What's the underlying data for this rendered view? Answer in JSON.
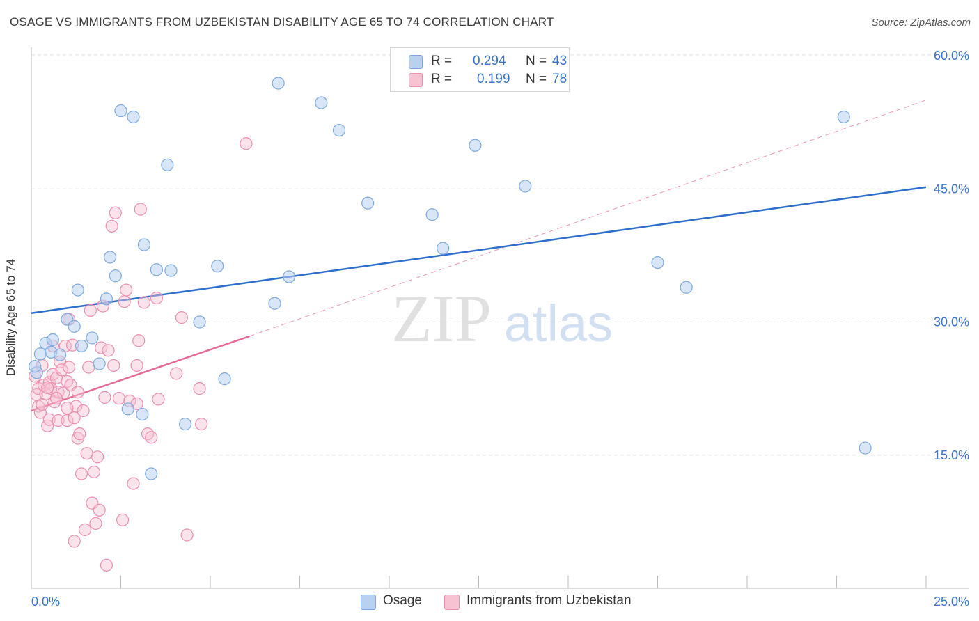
{
  "title": "OSAGE VS IMMIGRANTS FROM UZBEKISTAN DISABILITY AGE 65 TO 74 CORRELATION CHART",
  "source": "Source: ZipAtlas.com",
  "watermark": {
    "zip": "ZIP",
    "atlas": "atlas"
  },
  "legend_top": {
    "rows": [
      {
        "r_label": "R =",
        "r_value": "0.294",
        "n_label": "N =",
        "n_value": "43"
      },
      {
        "r_label": "R =",
        "r_value": "0.199",
        "n_label": "N =",
        "n_value": "78"
      }
    ]
  },
  "colors": {
    "osage_fill": "#b8d1f1",
    "osage_stroke": "#7ea8dc",
    "osage_line": "#2f6fcc",
    "uzb_fill": "#f7c2d2",
    "uzb_stroke": "#ea8fae",
    "uzb_line": "#e56b97",
    "tick_text": "#3a74c8",
    "grid": "#e3e3e3",
    "axis": "#bbbbbb"
  },
  "chart_data": {
    "type": "scatter",
    "title": "OSAGE VS IMMIGRANTS FROM UZBEKISTAN DISABILITY AGE 65 TO 74 CORRELATION CHART",
    "xlabel": "",
    "ylabel": "Disability Age 65 to 74",
    "xlim": [
      0,
      25
    ],
    "ylim": [
      0,
      62
    ],
    "x_tick_labels": [
      "0.0%",
      "25.0%"
    ],
    "y_ticks": [
      15,
      30,
      45,
      60
    ],
    "y_tick_labels": [
      "15.0%",
      "30.0%",
      "45.0%",
      "60.0%"
    ],
    "grid": true,
    "legend_position": "top-center",
    "series": [
      {
        "name": "Osage",
        "r": 0.294,
        "n": 43,
        "trend": {
          "x": [
            0,
            25
          ],
          "y": [
            31.0,
            45.2
          ]
        },
        "points": [
          [
            0.15,
            24.3
          ],
          [
            0.25,
            26.4
          ],
          [
            0.4,
            27.6
          ],
          [
            0.55,
            26.6
          ],
          [
            0.6,
            28.0
          ],
          [
            0.8,
            26.3
          ],
          [
            1.0,
            30.3
          ],
          [
            1.2,
            29.5
          ],
          [
            1.3,
            33.6
          ],
          [
            1.4,
            27.3
          ],
          [
            1.7,
            28.2
          ],
          [
            1.9,
            25.3
          ],
          [
            2.1,
            32.6
          ],
          [
            2.2,
            37.3
          ],
          [
            2.35,
            35.2
          ],
          [
            2.5,
            53.8
          ],
          [
            2.7,
            20.2
          ],
          [
            2.85,
            53.1
          ],
          [
            3.1,
            19.6
          ],
          [
            3.15,
            38.7
          ],
          [
            3.35,
            12.9
          ],
          [
            3.5,
            35.9
          ],
          [
            3.8,
            47.7
          ],
          [
            3.9,
            35.8
          ],
          [
            4.3,
            18.5
          ],
          [
            4.7,
            30.0
          ],
          [
            5.2,
            36.3
          ],
          [
            5.4,
            23.6
          ],
          [
            6.8,
            32.1
          ],
          [
            6.9,
            56.9
          ],
          [
            7.2,
            35.1
          ],
          [
            8.1,
            54.7
          ],
          [
            8.6,
            51.6
          ],
          [
            9.4,
            43.4
          ],
          [
            11.2,
            42.1
          ],
          [
            11.5,
            38.3
          ],
          [
            12.4,
            49.9
          ],
          [
            13.8,
            45.3
          ],
          [
            17.5,
            36.7
          ],
          [
            18.3,
            33.9
          ],
          [
            22.7,
            53.1
          ],
          [
            23.3,
            15.8
          ],
          [
            0.1,
            25.0
          ]
        ]
      },
      {
        "name": "Immigrants from Uzbekistan",
        "r": 0.199,
        "n": 78,
        "trend": {
          "x": [
            0,
            6.1
          ],
          "y": [
            20.0,
            28.4
          ]
        },
        "trend_extension": {
          "x": [
            6.1,
            25
          ],
          "y": [
            28.4,
            55.0
          ]
        },
        "points": [
          [
            0.1,
            23.9
          ],
          [
            0.15,
            21.8
          ],
          [
            0.2,
            20.5
          ],
          [
            0.2,
            22.5
          ],
          [
            0.25,
            19.8
          ],
          [
            0.3,
            25.1
          ],
          [
            0.35,
            22.9
          ],
          [
            0.4,
            21.9
          ],
          [
            0.45,
            18.3
          ],
          [
            0.5,
            23.2
          ],
          [
            0.5,
            19.0
          ],
          [
            0.55,
            22.5
          ],
          [
            0.6,
            24.1
          ],
          [
            0.65,
            21.0
          ],
          [
            0.7,
            23.7
          ],
          [
            0.75,
            22.1
          ],
          [
            0.75,
            18.9
          ],
          [
            0.8,
            25.5
          ],
          [
            0.85,
            24.6
          ],
          [
            0.9,
            22.0
          ],
          [
            0.95,
            27.3
          ],
          [
            1.0,
            18.9
          ],
          [
            1.0,
            23.3
          ],
          [
            1.05,
            24.9
          ],
          [
            1.1,
            22.9
          ],
          [
            1.15,
            27.4
          ],
          [
            1.2,
            19.2
          ],
          [
            1.25,
            20.5
          ],
          [
            1.3,
            16.9
          ],
          [
            1.3,
            22.1
          ],
          [
            1.35,
            17.4
          ],
          [
            1.4,
            12.9
          ],
          [
            1.45,
            20.0
          ],
          [
            1.5,
            6.6
          ],
          [
            1.55,
            15.2
          ],
          [
            1.6,
            24.9
          ],
          [
            1.65,
            31.3
          ],
          [
            1.7,
            9.6
          ],
          [
            1.75,
            13.1
          ],
          [
            1.8,
            7.3
          ],
          [
            1.85,
            14.8
          ],
          [
            1.9,
            8.8
          ],
          [
            1.95,
            27.1
          ],
          [
            2.0,
            31.8
          ],
          [
            2.05,
            21.5
          ],
          [
            2.1,
            2.6
          ],
          [
            2.15,
            26.8
          ],
          [
            2.25,
            40.8
          ],
          [
            2.3,
            25.1
          ],
          [
            2.35,
            42.3
          ],
          [
            2.45,
            21.4
          ],
          [
            2.55,
            7.7
          ],
          [
            2.6,
            32.3
          ],
          [
            2.65,
            33.6
          ],
          [
            2.75,
            21.1
          ],
          [
            2.85,
            11.8
          ],
          [
            2.95,
            20.8
          ],
          [
            2.95,
            25.1
          ],
          [
            3.0,
            27.9
          ],
          [
            3.05,
            42.7
          ],
          [
            3.15,
            32.2
          ],
          [
            3.25,
            17.4
          ],
          [
            3.35,
            17.0
          ],
          [
            3.5,
            32.7
          ],
          [
            3.55,
            21.3
          ],
          [
            4.05,
            24.2
          ],
          [
            4.2,
            30.5
          ],
          [
            4.35,
            6.0
          ],
          [
            4.7,
            22.5
          ],
          [
            4.75,
            18.5
          ],
          [
            6.0,
            50.1
          ],
          [
            1.05,
            30.3
          ],
          [
            0.6,
            27.3
          ],
          [
            1.2,
            5.3
          ],
          [
            0.3,
            20.7
          ],
          [
            0.45,
            22.6
          ],
          [
            0.7,
            21.4
          ],
          [
            1.0,
            20.3
          ]
        ]
      }
    ]
  },
  "axis": {
    "x_left_label": "0.0%",
    "x_right_label": "25.0%",
    "y_label": "Disability Age 65 to 74"
  },
  "bottom_legend": [
    {
      "label": "Osage"
    },
    {
      "label": "Immigrants from Uzbekistan"
    }
  ]
}
